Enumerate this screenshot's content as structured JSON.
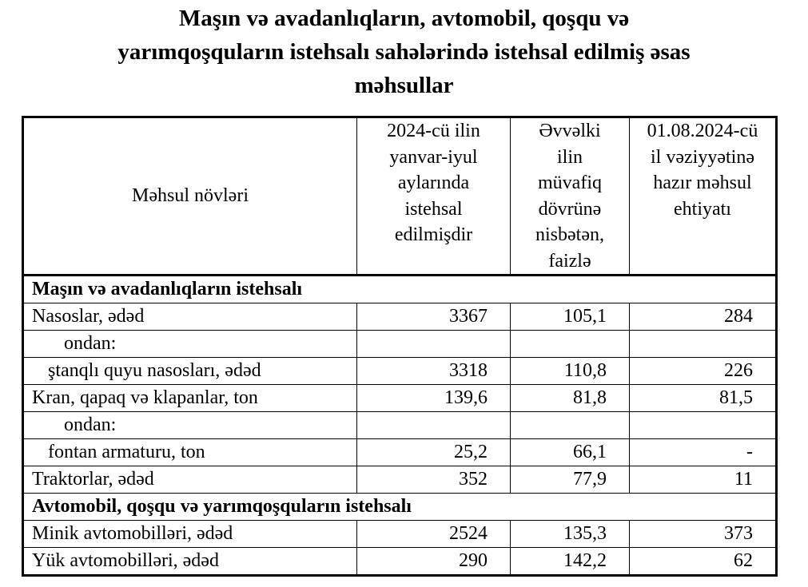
{
  "title": [
    "Maşın və avadanlıqların, avtomobil, qoşqu və",
    "yarımqoşquların istehsalı sahələrində istehsal edilmiş əsas",
    "məhsullar"
  ],
  "headers": [
    "Məhsul növləri",
    "2024-cü ilin yanvar-iyul aylarında istehsal edilmişdir",
    "Əvvəlki ilin müvafiq dövrünə nisbətən, faizlə",
    "01.08.2024-cü il vəziyyətinə hazır məhsul ehtiyatı"
  ],
  "header_lines": {
    "c2": [
      "2024-cü ilin",
      "yanvar-iyul",
      "aylarında",
      "istehsal",
      "edilmişdir"
    ],
    "c3": [
      "Əvvəlki",
      "ilin",
      "müvafiq",
      "dövrünə",
      "nisbətən,",
      "faizlə"
    ],
    "c4": [
      "01.08.2024-cü",
      "il vəziyyətinə",
      "hazır məhsul",
      "ehtiyatı"
    ]
  },
  "rows": [
    {
      "type": "section",
      "label": "Maşın və avadanlıqların istehsalı"
    },
    {
      "type": "row",
      "label": "Nasoslar, ədəd",
      "v": [
        "3367",
        "105,1",
        "284"
      ]
    },
    {
      "type": "sub",
      "label": "ondan:",
      "v": [
        "",
        "",
        ""
      ]
    },
    {
      "type": "row2",
      "label": "ştanqlı quyu nasosları, ədəd",
      "v": [
        "3318",
        "110,8",
        "226"
      ]
    },
    {
      "type": "row",
      "label": "Kran, qapaq və klapanlar, ton",
      "v": [
        "139,6",
        "81,8",
        "81,5"
      ]
    },
    {
      "type": "sub",
      "label": "ondan:",
      "v": [
        "",
        "",
        ""
      ]
    },
    {
      "type": "row2",
      "label": "fontan armaturu, ton",
      "v": [
        "25,2",
        "66,1",
        "-"
      ]
    },
    {
      "type": "row",
      "label": "Traktorlar, ədəd",
      "v": [
        "352",
        "77,9",
        "11"
      ]
    },
    {
      "type": "section",
      "label": "Avtomobil, qoşqu və yarımqoşquların istehsalı"
    },
    {
      "type": "row",
      "label": "Minik avtomobilləri, ədəd",
      "v": [
        "2524",
        "135,3",
        "373"
      ]
    },
    {
      "type": "row",
      "label": "Yük avtomobilləri, ədəd",
      "v": [
        "290",
        "142,2",
        "62"
      ]
    }
  ]
}
